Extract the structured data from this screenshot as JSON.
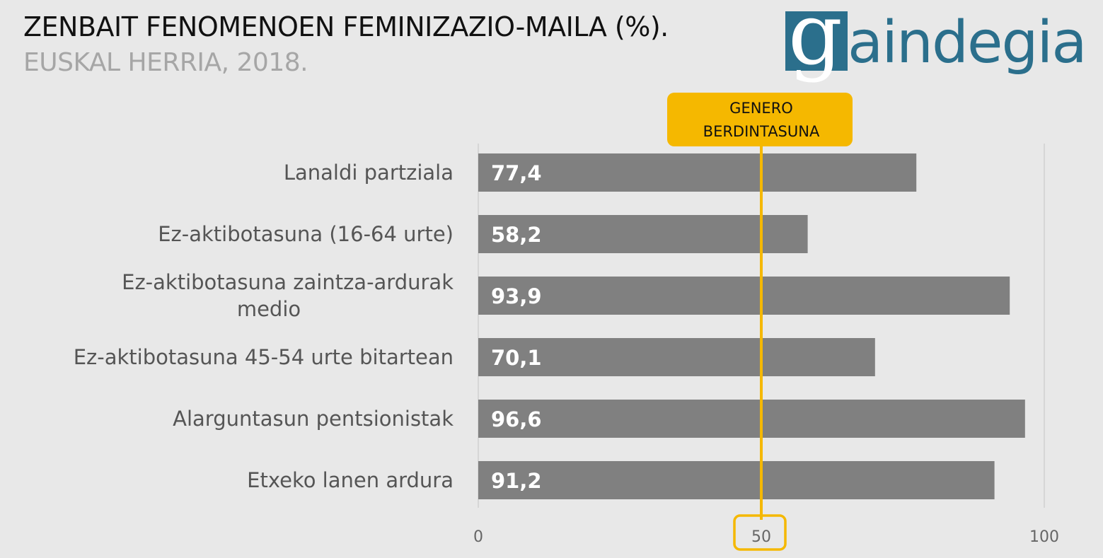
{
  "chart_data": {
    "type": "bar",
    "orientation": "horizontal",
    "title": "ZENBAIT FENOMENOEN FEMINIZAZIO-MAILA (%).",
    "subtitle": "EUSKAL HERRIA, 2018.",
    "categories": [
      [
        "Lanaldi partziala"
      ],
      [
        "Ez-aktibotasuna (16-64 urte)"
      ],
      [
        "Ez-aktibotasuna zaintza-ardurak",
        "medio"
      ],
      [
        "Ez-aktibotasuna 45-54 urte bitartean"
      ],
      [
        "Alarguntasun pentsionistak"
      ],
      [
        "Etxeko lanen ardura"
      ]
    ],
    "values": [
      77.4,
      58.2,
      93.9,
      70.1,
      96.6,
      91.2
    ],
    "value_labels": [
      "77,4",
      "58,2",
      "93,9",
      "70,1",
      "96,6",
      "91,2"
    ],
    "xlim": [
      0,
      100
    ],
    "xticks": [
      "0",
      "50",
      "100"
    ],
    "reference_line": {
      "value": 50,
      "label": [
        "GENERO",
        "BERDINTASUNA"
      ],
      "color": "#f5b800"
    },
    "bar_color": "#808080",
    "grid": false
  },
  "logo": {
    "text": "gaindegia",
    "box_letter": "g",
    "rest": "aindegia",
    "color": "#2b6f8c"
  }
}
